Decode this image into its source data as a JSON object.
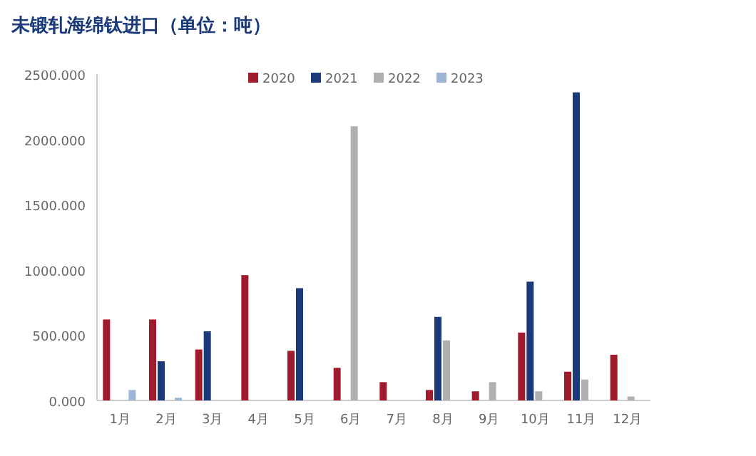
{
  "chart_data": {
    "type": "bar",
    "title": "未锻轧海绵钛进口（单位：吨）",
    "categories": [
      "1月",
      "2月",
      "3月",
      "4月",
      "5月",
      "6月",
      "7月",
      "8月",
      "9月",
      "10月",
      "11月",
      "12月"
    ],
    "series": [
      {
        "name": "2020",
        "color": "#a01c2c",
        "values": [
          620,
          620,
          390,
          960,
          380,
          250,
          140,
          80,
          70,
          520,
          220,
          350
        ]
      },
      {
        "name": "2021",
        "color": "#1a3a7a",
        "values": [
          null,
          300,
          530,
          null,
          860,
          null,
          null,
          640,
          null,
          910,
          2360,
          null
        ]
      },
      {
        "name": "2022",
        "color": "#b0b0b0",
        "values": [
          null,
          null,
          null,
          null,
          null,
          2100,
          null,
          460,
          140,
          70,
          160,
          30
        ]
      },
      {
        "name": "2023",
        "color": "#9db5d6",
        "values": [
          80,
          20,
          null,
          null,
          null,
          null,
          null,
          null,
          null,
          null,
          null,
          null
        ]
      }
    ],
    "ylim": [
      0,
      2500
    ],
    "yticks": [
      {
        "value": 0,
        "label": "0.000"
      },
      {
        "value": 500,
        "label": "500.000"
      },
      {
        "value": 1000,
        "label": "1000.000"
      },
      {
        "value": 1500,
        "label": "1500.000"
      },
      {
        "value": 2000,
        "label": "2000.000"
      },
      {
        "value": 2500,
        "label": "2500.000"
      }
    ],
    "legend": "top"
  }
}
